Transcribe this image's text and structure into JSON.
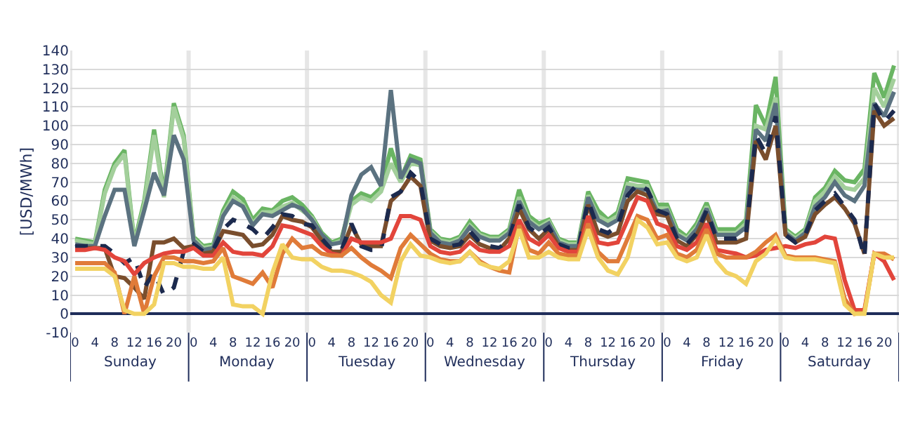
{
  "chart_data": {
    "type": "line",
    "ylabel": "[USD/MWh]",
    "categories": [
      "0",
      null,
      "4",
      null,
      "8",
      null,
      "12",
      null,
      "16",
      null,
      "20",
      null,
      "0",
      null,
      "4",
      null,
      "8",
      null,
      "12",
      null,
      "16",
      null,
      "20",
      null,
      "0",
      null,
      "4",
      null,
      "8",
      null,
      "12",
      null,
      "16",
      null,
      "20",
      null,
      "0",
      null,
      "4",
      null,
      "8",
      null,
      "12",
      null,
      "16",
      null,
      "20",
      null,
      "0",
      null,
      "4",
      null,
      "8",
      null,
      "12",
      null,
      "16",
      null,
      "20",
      null,
      "0",
      null,
      "4",
      null,
      "8",
      null,
      "12",
      null,
      "16",
      null,
      "20",
      null,
      "0",
      null,
      "4",
      null,
      "8",
      null,
      "12",
      null,
      "16",
      null,
      "20",
      null
    ],
    "annotations": [
      "Sunday",
      "Monday",
      "Tuesday",
      "Wednesday",
      "Thursday",
      "Friday",
      "Saturday"
    ],
    "ylim": [
      -10,
      140
    ],
    "yticks": [
      -10,
      0,
      10,
      20,
      30,
      40,
      50,
      60,
      70,
      80,
      90,
      100,
      110,
      120,
      130,
      140
    ],
    "grid": true,
    "marker": "none",
    "series": [
      {
        "color": "#6ab563",
        "values": [
          40,
          39,
          38,
          66,
          80,
          87,
          38,
          60,
          98,
          64,
          112,
          95,
          41,
          36,
          37,
          55,
          65,
          61,
          50,
          56,
          55,
          60,
          62,
          58,
          52,
          43,
          38,
          40,
          60,
          64,
          62,
          67,
          88,
          72,
          84,
          82,
          45,
          40,
          39,
          41,
          49,
          43,
          41,
          41,
          45,
          66,
          52,
          48,
          50,
          40,
          38,
          38,
          65,
          55,
          50,
          54,
          72,
          71,
          70,
          58,
          58,
          45,
          41,
          48,
          59,
          45,
          45,
          45,
          50,
          111,
          100,
          126,
          45,
          41,
          45,
          62,
          67,
          76,
          71,
          70,
          77,
          128,
          115,
          132
        ]
      },
      {
        "color": "#a3cf9b",
        "values": [
          39,
          38,
          37,
          64,
          78,
          85,
          37,
          58,
          95,
          62,
          110,
          93,
          40,
          35,
          36,
          53,
          62,
          58,
          48,
          54,
          54,
          57,
          59,
          55,
          51,
          42,
          37,
          39,
          58,
          62,
          60,
          65,
          80,
          70,
          80,
          79,
          44,
          39,
          38,
          40,
          47,
          42,
          40,
          40,
          44,
          62,
          50,
          46,
          49,
          39,
          37,
          37,
          63,
          52,
          49,
          52,
          69,
          68,
          68,
          56,
          56,
          43,
          40,
          46,
          57,
          43,
          43,
          43,
          48,
          100,
          98,
          115,
          44,
          40,
          44,
          60,
          65,
          73,
          67,
          66,
          72,
          120,
          110,
          125
        ]
      },
      {
        "color": "#5b7280",
        "values": [
          37,
          36,
          36,
          52,
          66,
          66,
          36,
          55,
          75,
          63,
          95,
          82,
          39,
          34,
          35,
          52,
          60,
          57,
          47,
          53,
          52,
          55,
          58,
          56,
          50,
          42,
          37,
          38,
          63,
          74,
          78,
          68,
          119,
          72,
          82,
          80,
          43,
          38,
          37,
          39,
          46,
          41,
          39,
          39,
          43,
          60,
          49,
          45,
          48,
          38,
          36,
          36,
          62,
          50,
          47,
          50,
          67,
          66,
          66,
          54,
          55,
          42,
          39,
          45,
          56,
          42,
          42,
          42,
          46,
          98,
          92,
          112,
          43,
          39,
          43,
          57,
          62,
          70,
          63,
          60,
          68,
          112,
          105,
          118
        ]
      },
      {
        "color": "#7a4e2d",
        "values": [
          35,
          35,
          35,
          35,
          20,
          19,
          14,
          8,
          38,
          38,
          40,
          35,
          36,
          32,
          33,
          44,
          43,
          42,
          36,
          37,
          42,
          52,
          50,
          49,
          46,
          39,
          33,
          33,
          47,
          37,
          36,
          36,
          60,
          65,
          73,
          68,
          39,
          36,
          35,
          36,
          42,
          37,
          35,
          34,
          40,
          56,
          45,
          40,
          45,
          36,
          34,
          34,
          58,
          43,
          41,
          43,
          60,
          65,
          63,
          53,
          52,
          39,
          36,
          42,
          53,
          38,
          38,
          38,
          40,
          92,
          82,
          100,
          42,
          38,
          41,
          53,
          58,
          62,
          56,
          48,
          32,
          108,
          100,
          104
        ]
      },
      {
        "color": "#1c2a4e",
        "line_style": "dashed",
        "values": [
          36,
          36,
          36,
          36,
          32,
          27,
          30,
          14,
          22,
          10,
          14,
          33,
          37,
          33,
          34,
          45,
          50,
          48,
          45,
          40,
          46,
          53,
          52,
          48,
          47,
          40,
          34,
          34,
          48,
          36,
          34,
          34,
          62,
          65,
          75,
          70,
          40,
          37,
          36,
          37,
          44,
          38,
          36,
          35,
          40,
          58,
          46,
          42,
          46,
          37,
          35,
          35,
          60,
          45,
          43,
          47,
          63,
          69,
          66,
          55,
          53,
          40,
          37,
          43,
          55,
          40,
          40,
          40,
          42,
          95,
          85,
          105,
          42,
          38,
          42,
          55,
          60,
          64,
          57,
          50,
          30,
          112,
          102,
          108
        ]
      },
      {
        "color": "#e2453b",
        "values": [
          34,
          34,
          35,
          34,
          30,
          28,
          21,
          27,
          30,
          32,
          33,
          33,
          35,
          31,
          31,
          38,
          33,
          32,
          32,
          31,
          36,
          47,
          46,
          44,
          42,
          36,
          32,
          31,
          40,
          38,
          38,
          38,
          40,
          52,
          52,
          50,
          36,
          33,
          32,
          33,
          38,
          34,
          33,
          33,
          36,
          50,
          40,
          37,
          42,
          35,
          33,
          33,
          52,
          38,
          37,
          38,
          50,
          62,
          60,
          48,
          46,
          36,
          34,
          38,
          48,
          34,
          33,
          32,
          30,
          31,
          34,
          35,
          36,
          35,
          37,
          38,
          41,
          40,
          18,
          2,
          2,
          32,
          28,
          18
        ]
      },
      {
        "color": "#e07b39",
        "values": [
          27,
          27,
          27,
          27,
          22,
          0,
          20,
          0,
          20,
          30,
          30,
          28,
          28,
          27,
          28,
          35,
          20,
          18,
          16,
          22,
          14,
          32,
          40,
          35,
          36,
          32,
          31,
          31,
          35,
          30,
          26,
          23,
          19,
          35,
          42,
          37,
          32,
          29,
          28,
          28,
          33,
          28,
          25,
          23,
          22,
          47,
          34,
          32,
          38,
          32,
          31,
          31,
          48,
          33,
          28,
          28,
          40,
          52,
          50,
          40,
          42,
          32,
          30,
          34,
          45,
          32,
          30,
          30,
          30,
          33,
          38,
          42,
          31,
          30,
          30,
          30,
          29,
          28,
          8,
          0,
          1,
          32,
          32,
          29
        ]
      },
      {
        "color": "#f2d262",
        "values": [
          24,
          24,
          24,
          24,
          20,
          2,
          0,
          0,
          5,
          27,
          27,
          25,
          25,
          24,
          24,
          30,
          5,
          4,
          4,
          0,
          22,
          37,
          30,
          29,
          29,
          25,
          23,
          23,
          22,
          20,
          17,
          10,
          6,
          28,
          37,
          31,
          30,
          28,
          27,
          28,
          33,
          27,
          25,
          24,
          28,
          45,
          30,
          30,
          33,
          30,
          29,
          29,
          45,
          30,
          23,
          21,
          30,
          50,
          46,
          37,
          38,
          30,
          28,
          30,
          42,
          28,
          22,
          20,
          16,
          28,
          32,
          40,
          30,
          29,
          29,
          29,
          28,
          27,
          5,
          0,
          0,
          32,
          30,
          30
        ]
      }
    ]
  }
}
